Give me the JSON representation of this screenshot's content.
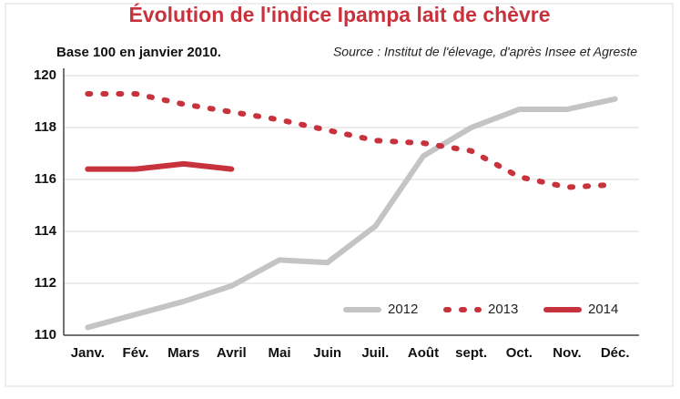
{
  "chart_data": {
    "type": "line",
    "title": "Évolution de l'indice Ipampa lait de chèvre",
    "subtitle": "Base 100 en janvier 2010.",
    "source": "Source : Institut de l'élevage, d'après Insee et Agreste",
    "categories": [
      "Janv.",
      "Fév.",
      "Mars",
      "Avril",
      "Mai",
      "Juin",
      "Juil.",
      "Août",
      "sept.",
      "Oct.",
      "Nov.",
      "Déc."
    ],
    "series": [
      {
        "name": "2012",
        "color": "#c4c4c4",
        "style": "solid",
        "values": [
          110.3,
          110.8,
          111.3,
          111.9,
          112.9,
          112.8,
          114.2,
          116.9,
          118.0,
          118.7,
          118.7,
          119.1
        ]
      },
      {
        "name": "2013",
        "color": "#c8323c",
        "style": "dotted",
        "values": [
          119.3,
          119.3,
          118.9,
          118.6,
          118.3,
          117.9,
          117.5,
          117.4,
          117.1,
          116.1,
          115.7,
          115.8
        ]
      },
      {
        "name": "2014",
        "color": "#c8323c",
        "style": "solid",
        "values": [
          116.4,
          116.4,
          116.6,
          116.4,
          null,
          null,
          null,
          null,
          null,
          null,
          null,
          null
        ]
      }
    ],
    "ylim": [
      110,
      120
    ],
    "yticks": [
      110,
      112,
      114,
      116,
      118,
      120
    ],
    "grid": true,
    "legend": "bottom-right"
  }
}
